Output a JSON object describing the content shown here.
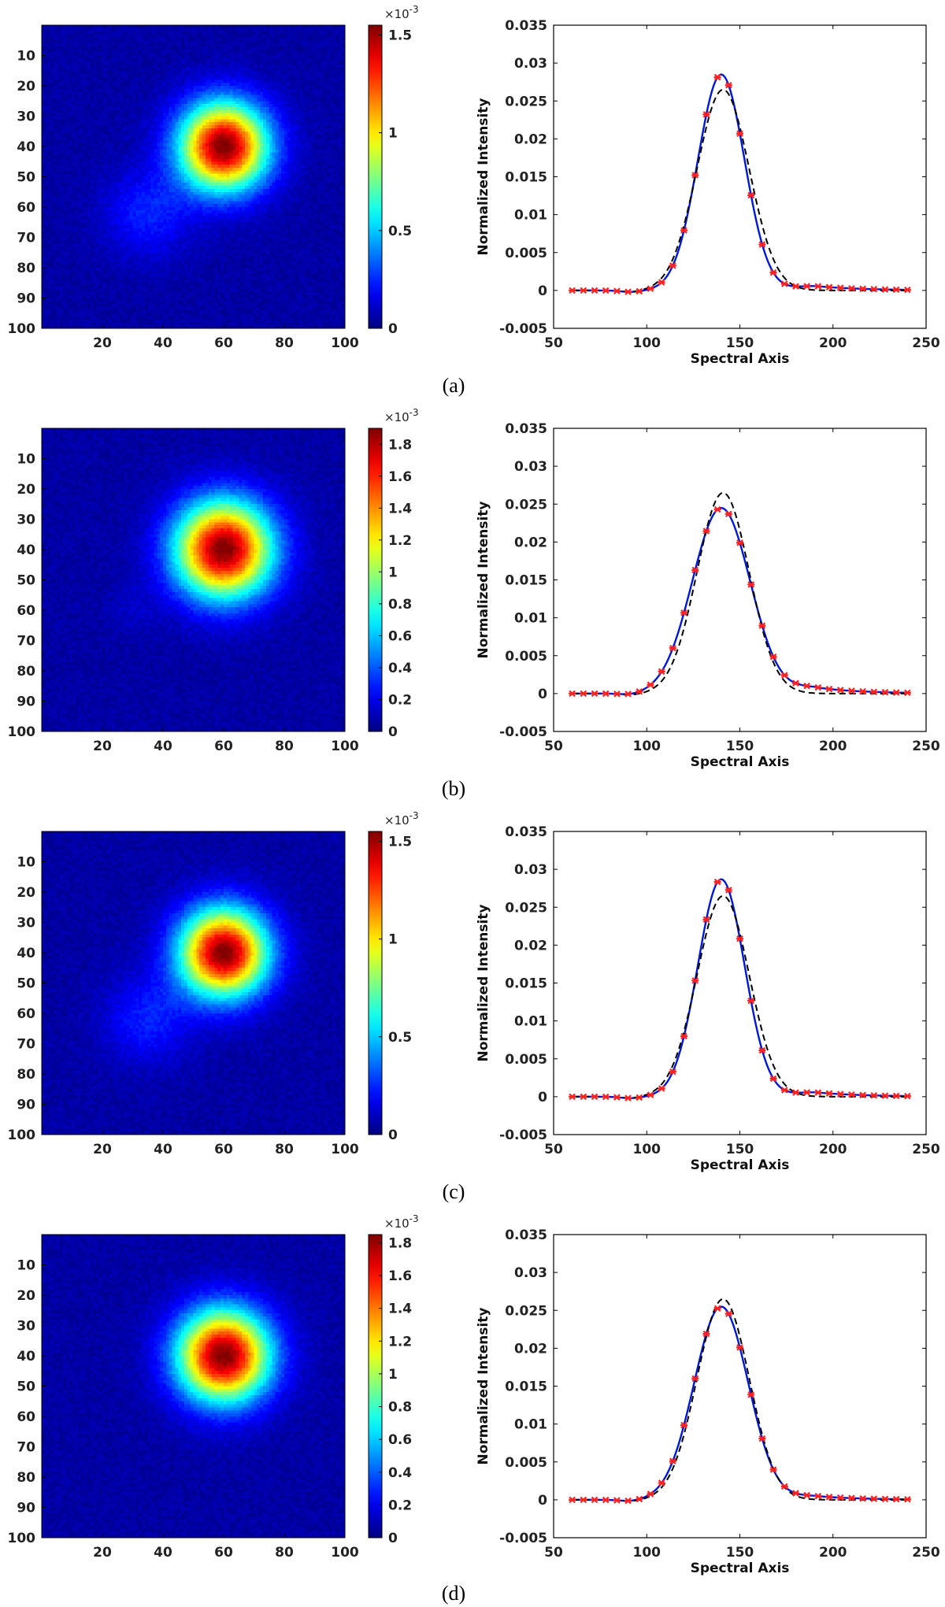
{
  "chart_data": [
    {
      "panel": "a",
      "caption": "(a)",
      "heatmap": {
        "type": "heatmap",
        "xticks": [
          "20",
          "40",
          "60",
          "80",
          "100"
        ],
        "yticks": [
          "10",
          "20",
          "30",
          "40",
          "50",
          "60",
          "70",
          "80",
          "90",
          "100"
        ],
        "xlim": [
          0,
          100
        ],
        "ylim": [
          0,
          100
        ],
        "colorbar_max": 1.55,
        "colorbar_ticks": [
          "0",
          "0.5",
          "1",
          "1.5"
        ],
        "colorbar_tick_values": [
          0,
          0.5,
          1,
          1.5
        ],
        "colorbar_exponent_base": "×10",
        "colorbar_exponent": "-3",
        "main_peak": {
          "x": 60,
          "y": 40,
          "sigma": 10
        },
        "secondary_blob": {
          "x": 35,
          "y": 62,
          "sigma": 10,
          "relative_amplitude": 0.12
        }
      },
      "spectrum": {
        "type": "line",
        "xlabel": "Spectral Axis",
        "ylabel": "Normalized Intensity",
        "xlim": [
          50,
          250
        ],
        "ylim": [
          -0.005,
          0.035
        ],
        "xticks": [
          "50",
          "100",
          "150",
          "200",
          "250"
        ],
        "yticks": [
          "-0.005",
          "0",
          "0.005",
          "0.01",
          "0.015",
          "0.02",
          "0.025",
          "0.03",
          "0.035"
        ],
        "series": [
          {
            "name": "solid",
            "color": "#0018d8",
            "peak_x": 140,
            "peak": 0.0285,
            "sigma": 12.5,
            "tail": 0.0006
          },
          {
            "name": "dashed",
            "color": "#000000",
            "peak_x": 141,
            "peak": 0.0265,
            "sigma": 14,
            "tail": 0
          },
          {
            "name": "markers",
            "color": "#ff2020",
            "peak_x": 140,
            "peak": 0.0285,
            "sigma": 12.5,
            "tail": 0.0006,
            "x_step": 6
          }
        ]
      }
    },
    {
      "panel": "b",
      "caption": "(b)",
      "heatmap": {
        "type": "heatmap",
        "xticks": [
          "20",
          "40",
          "60",
          "80",
          "100"
        ],
        "yticks": [
          "10",
          "20",
          "30",
          "40",
          "50",
          "60",
          "70",
          "80",
          "90",
          "100"
        ],
        "xlim": [
          0,
          100
        ],
        "ylim": [
          0,
          100
        ],
        "colorbar_max": 1.9,
        "colorbar_ticks": [
          "0",
          "0.2",
          "0.4",
          "0.6",
          "0.8",
          "1",
          "1.2",
          "1.4",
          "1.6",
          "1.8"
        ],
        "colorbar_tick_values": [
          0,
          0.2,
          0.4,
          0.6,
          0.8,
          1,
          1.2,
          1.4,
          1.6,
          1.8
        ],
        "colorbar_exponent_base": "×10",
        "colorbar_exponent": "-3",
        "main_peak": {
          "x": 60,
          "y": 40,
          "sigma": 11
        },
        "secondary_blob": {
          "x": 30,
          "y": 60,
          "sigma": 6,
          "relative_amplitude": 0.03
        }
      },
      "spectrum": {
        "type": "line",
        "xlabel": "Spectral Axis",
        "ylabel": "Normalized Intensity",
        "xlim": [
          50,
          250
        ],
        "ylim": [
          -0.005,
          0.035
        ],
        "xticks": [
          "50",
          "100",
          "150",
          "200",
          "250"
        ],
        "yticks": [
          "-0.005",
          "0",
          "0.005",
          "0.01",
          "0.015",
          "0.02",
          "0.025",
          "0.03",
          "0.035"
        ],
        "series": [
          {
            "name": "solid",
            "color": "#0018d8",
            "peak_x": 140,
            "peak": 0.0245,
            "sigma": 15.5,
            "tail": 0.0008
          },
          {
            "name": "dashed",
            "color": "#000000",
            "peak_x": 141,
            "peak": 0.0265,
            "sigma": 14,
            "tail": 0
          },
          {
            "name": "markers",
            "color": "#ff2020",
            "peak_x": 140,
            "peak": 0.0245,
            "sigma": 15.5,
            "tail": 0.0008,
            "x_step": 6
          }
        ]
      }
    },
    {
      "panel": "c",
      "caption": "(c)",
      "heatmap": {
        "type": "heatmap",
        "xticks": [
          "20",
          "40",
          "60",
          "80",
          "100"
        ],
        "yticks": [
          "10",
          "20",
          "30",
          "40",
          "50",
          "60",
          "70",
          "80",
          "90",
          "100"
        ],
        "xlim": [
          0,
          100
        ],
        "ylim": [
          0,
          100
        ],
        "colorbar_max": 1.55,
        "colorbar_ticks": [
          "0",
          "0.5",
          "1",
          "1.5"
        ],
        "colorbar_tick_values": [
          0,
          0.5,
          1,
          1.5
        ],
        "colorbar_exponent_base": "×10",
        "colorbar_exponent": "-3",
        "main_peak": {
          "x": 60,
          "y": 40,
          "sigma": 10
        },
        "secondary_blob": {
          "x": 35,
          "y": 62,
          "sigma": 10,
          "relative_amplitude": 0.12
        }
      },
      "spectrum": {
        "type": "line",
        "xlabel": "Spectral Axis",
        "ylabel": "Normalized Intensity",
        "xlim": [
          50,
          250
        ],
        "ylim": [
          -0.005,
          0.035
        ],
        "xticks": [
          "50",
          "100",
          "150",
          "200",
          "250"
        ],
        "yticks": [
          "-0.005",
          "0",
          "0.005",
          "0.01",
          "0.015",
          "0.02",
          "0.025",
          "0.03",
          "0.035"
        ],
        "series": [
          {
            "name": "solid",
            "color": "#0018d8",
            "peak_x": 140,
            "peak": 0.0287,
            "sigma": 12.5,
            "tail": 0.0006
          },
          {
            "name": "dashed",
            "color": "#000000",
            "peak_x": 141,
            "peak": 0.0265,
            "sigma": 14,
            "tail": 0
          },
          {
            "name": "markers",
            "color": "#ff2020",
            "peak_x": 140,
            "peak": 0.0287,
            "sigma": 12.5,
            "tail": 0.0006,
            "x_step": 6
          }
        ]
      }
    },
    {
      "panel": "d",
      "caption": "(d)",
      "heatmap": {
        "type": "heatmap",
        "xticks": [
          "20",
          "40",
          "60",
          "80",
          "100"
        ],
        "yticks": [
          "10",
          "20",
          "30",
          "40",
          "50",
          "60",
          "70",
          "80",
          "90",
          "100"
        ],
        "xlim": [
          0,
          100
        ],
        "ylim": [
          0,
          100
        ],
        "colorbar_max": 1.85,
        "colorbar_ticks": [
          "0",
          "0.2",
          "0.4",
          "0.6",
          "0.8",
          "1",
          "1.2",
          "1.4",
          "1.6",
          "1.8"
        ],
        "colorbar_tick_values": [
          0,
          0.2,
          0.4,
          0.6,
          0.8,
          1,
          1.2,
          1.4,
          1.6,
          1.8
        ],
        "colorbar_exponent_base": "×10",
        "colorbar_exponent": "-3",
        "main_peak": {
          "x": 60,
          "y": 40,
          "sigma": 10.5
        },
        "secondary_blob": {
          "x": 30,
          "y": 60,
          "sigma": 6,
          "relative_amplitude": 0.0
        }
      },
      "spectrum": {
        "type": "line",
        "xlabel": "Spectral Axis",
        "ylabel": "Normalized Intensity",
        "xlim": [
          50,
          250
        ],
        "ylim": [
          -0.005,
          0.035
        ],
        "xticks": [
          "50",
          "100",
          "150",
          "200",
          "250"
        ],
        "yticks": [
          "-0.005",
          "0",
          "0.005",
          "0.01",
          "0.015",
          "0.02",
          "0.025",
          "0.03",
          "0.035"
        ],
        "series": [
          {
            "name": "solid",
            "color": "#0018d8",
            "peak_x": 140,
            "peak": 0.0255,
            "sigma": 14.5,
            "tail": 0.0005
          },
          {
            "name": "dashed",
            "color": "#000000",
            "peak_x": 141,
            "peak": 0.0265,
            "sigma": 14,
            "tail": 0
          },
          {
            "name": "markers",
            "color": "#ff2020",
            "peak_x": 140,
            "peak": 0.0255,
            "sigma": 14.5,
            "tail": 0.0005,
            "x_step": 6
          }
        ]
      }
    }
  ]
}
